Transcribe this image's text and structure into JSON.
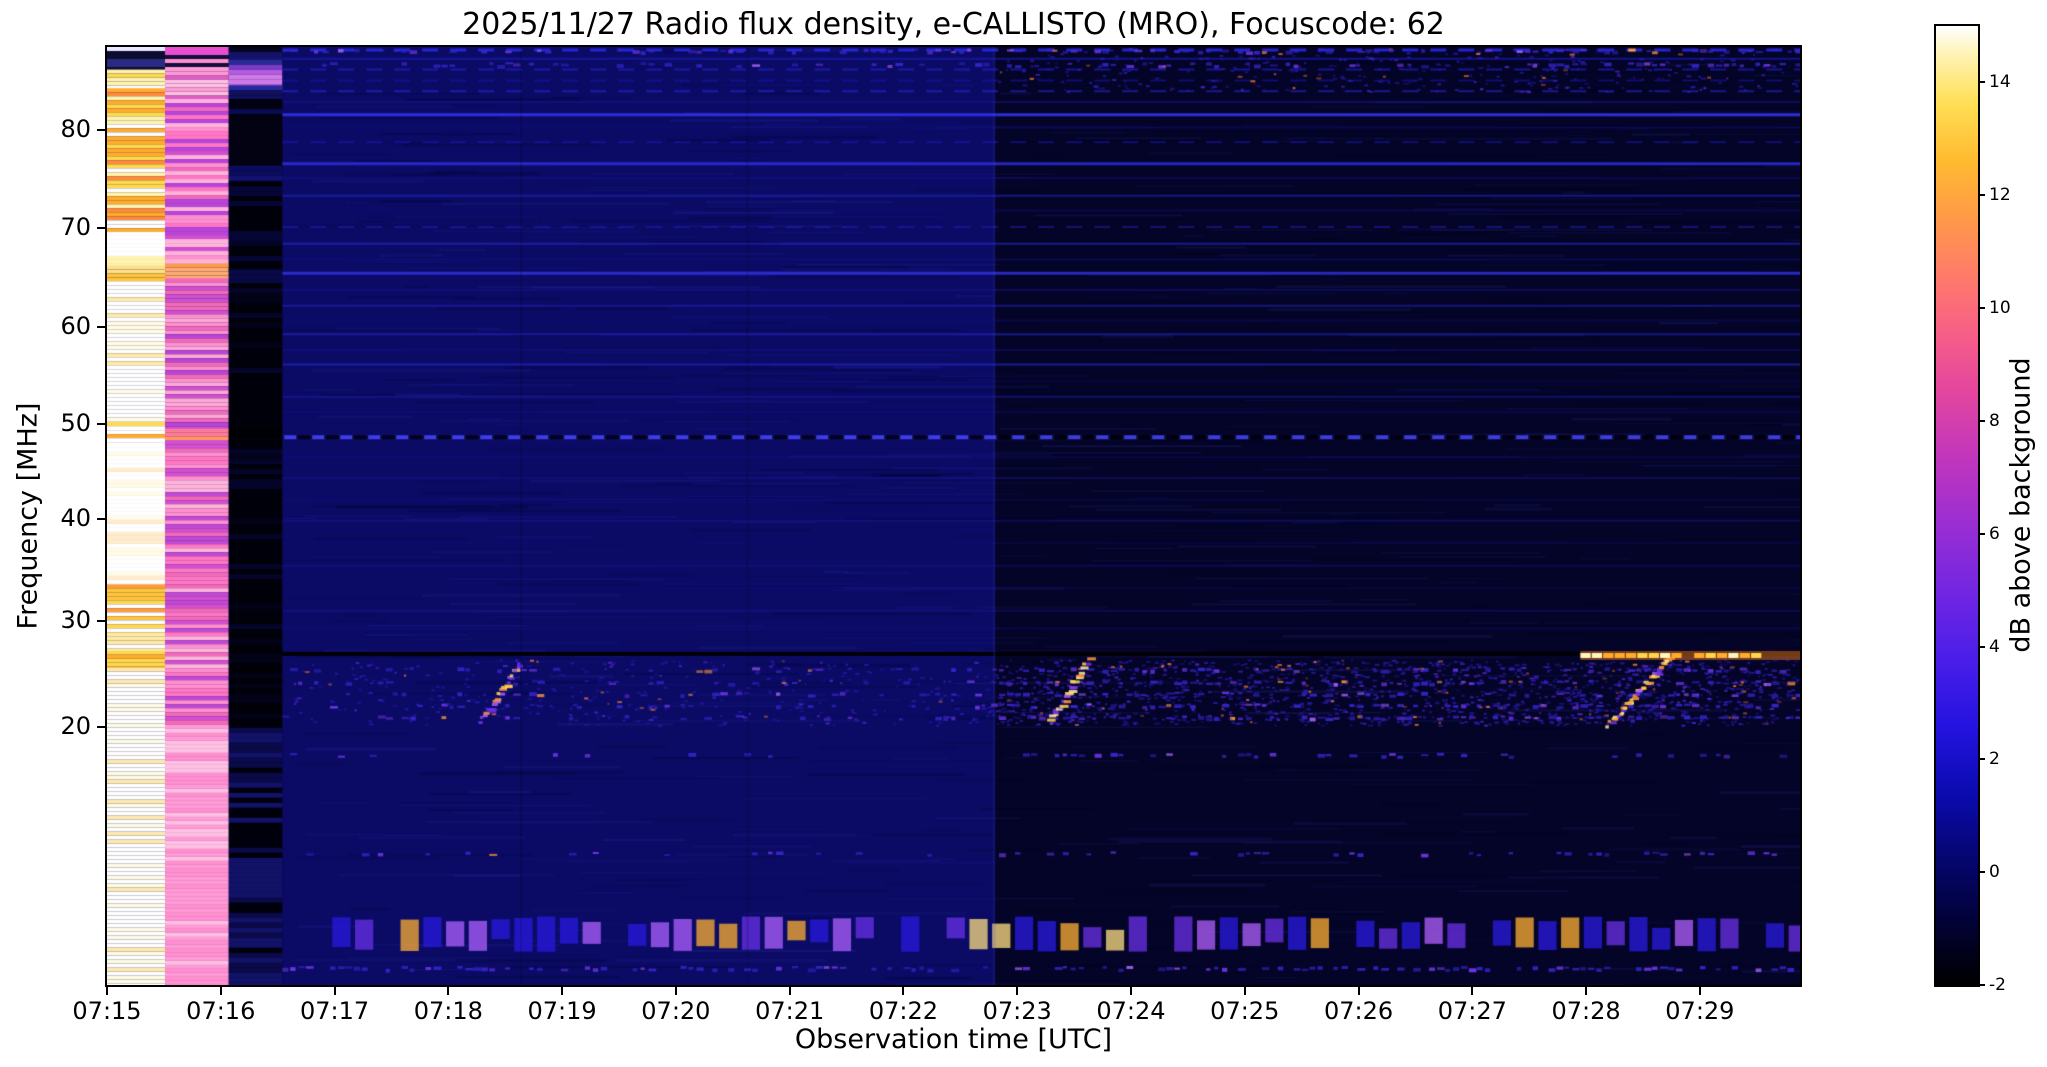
{
  "chart_data": {
    "type": "heatmap",
    "subtype": "radio-spectrogram",
    "title": "2025/11/27  Radio flux density, e-CALLISTO (MRO), Focuscode: 62",
    "xlabel": "Observation time [UTC]",
    "ylabel": "Frequency [MHz]",
    "x_ticks": [
      "07:15",
      "07:16",
      "07:17",
      "07:18",
      "07:19",
      "07:20",
      "07:21",
      "07:22",
      "07:23",
      "07:24",
      "07:25",
      "07:26",
      "07:27",
      "07:28",
      "07:29"
    ],
    "x_start_min": 0,
    "x_end_min": 14.88,
    "time_unit": "minutes after 07:15 UTC",
    "y_ticks": [
      80,
      70,
      60,
      50,
      40,
      30,
      20
    ],
    "y_range_mhz": [
      16.4,
      88.5
    ],
    "grid": false,
    "freq_anchors": [
      [
        88.5,
        0
      ],
      [
        80,
        0.089
      ],
      [
        70,
        0.193
      ],
      [
        60,
        0.298
      ],
      [
        50,
        0.402
      ],
      [
        40,
        0.503
      ],
      [
        30,
        0.612
      ],
      [
        20,
        0.725
      ],
      [
        19,
        0.8
      ],
      [
        18.3,
        0.87
      ],
      [
        17.5,
        0.935
      ],
      [
        16.4,
        1
      ]
    ],
    "colorbar": {
      "label": "dB above background",
      "ticks": [
        -2,
        0,
        2,
        4,
        6,
        8,
        10,
        12,
        14
      ],
      "vmin": -2,
      "vmax": 15,
      "colormap": "gnuplot2-like",
      "stops": [
        [
          0,
          "#000000"
        ],
        [
          0.07,
          "#02023a"
        ],
        [
          0.13,
          "#05056e"
        ],
        [
          0.2,
          "#0b0bb0"
        ],
        [
          0.27,
          "#2413e0"
        ],
        [
          0.34,
          "#4a1ee8"
        ],
        [
          0.41,
          "#7226e2"
        ],
        [
          0.48,
          "#9a2ed2"
        ],
        [
          0.55,
          "#c136bc"
        ],
        [
          0.62,
          "#e4469e"
        ],
        [
          0.68,
          "#f75f86"
        ],
        [
          0.74,
          "#ff7b6a"
        ],
        [
          0.8,
          "#ff9a48"
        ],
        [
          0.86,
          "#ffbb30"
        ],
        [
          0.92,
          "#ffdf56"
        ],
        [
          0.97,
          "#fff3b4"
        ],
        [
          1,
          "#ffffff"
        ]
      ]
    },
    "spectrogram": {
      "seed": 1337,
      "main_t0": 1.54,
      "transition_t": 7.8,
      "regions": [
        {
          "t0": 1.54,
          "t1": 7.8,
          "color": "#0b0b66"
        },
        {
          "t0": 7.8,
          "t1": 14.88,
          "color": "#040428"
        }
      ],
      "texture": {
        "streaks": 750
      },
      "columns": [
        {
          "t0": 0,
          "t1": 0.51,
          "stripe": 4,
          "zones": [
            {
              "f0": 88.6,
              "f1": 86.2,
              "pal": [
                "#0c0c30",
                "#2a2a85",
                "#e8e8ff"
              ],
              "bias": 0.55
            },
            {
              "f0": 86.2,
              "f1": 84.3,
              "pal": [
                "#ffffff",
                "#ffd84d",
                "#fff3b0"
              ]
            },
            {
              "f0": 84.3,
              "f1": 69.6,
              "pal": [
                "#ffd84d",
                "#ffffff",
                "#ffab2e",
                "#fff3b0",
                "#ff8a3c"
              ]
            },
            {
              "f0": 69.6,
              "f1": 66.2,
              "pal": [
                "#ffffff",
                "#fff3b0"
              ]
            },
            {
              "f0": 66.2,
              "f1": 64.6,
              "pal": [
                "#ffc43c",
                "#ff9a3c",
                "#ffe08a"
              ]
            },
            {
              "f0": 64.6,
              "f1": 50.2,
              "pal": [
                "#ffffff",
                "#fffbe6",
                "#ffeaa6"
              ],
              "bias": 0.5
            },
            {
              "f0": 50.2,
              "f1": 47.9,
              "pal": [
                "#ffd84d",
                "#ffab2e",
                "#ffffff"
              ]
            },
            {
              "f0": 47.9,
              "f1": 33.6,
              "pal": [
                "#ffffff",
                "#fffbe6",
                "#ffeccc"
              ],
              "bias": 0.55
            },
            {
              "f0": 33.6,
              "f1": 28.9,
              "pal": [
                "#ffd84d",
                "#ffc43c",
                "#ffffff",
                "#ff9a3c"
              ]
            },
            {
              "f0": 28.9,
              "f1": 27.2,
              "pal": [
                "#ffffff",
                "#ffeaa6"
              ]
            },
            {
              "f0": 27.2,
              "f1": 25.6,
              "pal": [
                "#ffab2e",
                "#ffd84d"
              ]
            },
            {
              "f0": 25.6,
              "f1": 16.4,
              "pal": [
                "#ffffff",
                "#fffbe6",
                "#ffe9b0"
              ],
              "bias": 0.5
            }
          ]
        },
        {
          "t0": 0.51,
          "t1": 1.07,
          "stripe": 4,
          "zones": [
            {
              "f0": 88.6,
              "f1": 86.4,
              "pal": [
                "#10103a",
                "#e84fd0",
                "#ff8fd0"
              ],
              "bias": 0.4
            },
            {
              "f0": 86.4,
              "f1": 83.2,
              "pal": [
                "#ff9ad6",
                "#ffc0e4",
                "#e05cc8"
              ]
            },
            {
              "f0": 83.2,
              "f1": 66.4,
              "pal": [
                "#f06abc",
                "#ff8fd0",
                "#d24fd0",
                "#b844d8",
                "#ffb4dc",
                "#ff77c4"
              ]
            },
            {
              "f0": 66.4,
              "f1": 64.9,
              "pal": [
                "#ffab74",
                "#ff8fb0",
                "#ff9a4a"
              ]
            },
            {
              "f0": 64.9,
              "f1": 49.5,
              "pal": [
                "#f06abc",
                "#ff8fd0",
                "#cf4fd0",
                "#ffa8d8",
                "#b844d8"
              ]
            },
            {
              "f0": 49.5,
              "f1": 48.3,
              "pal": [
                "#ff9a5a",
                "#ff7a9a"
              ]
            },
            {
              "f0": 48.3,
              "f1": 20.2,
              "pal": [
                "#f06abc",
                "#ff8fd0",
                "#d24fd0",
                "#ffb4dc",
                "#c04ad4",
                "#ff77c4"
              ]
            },
            {
              "f0": 20.2,
              "f1": 16.4,
              "pal": [
                "#ff9ad6",
                "#ffc0e4",
                "#ff8fd0"
              ]
            }
          ]
        },
        {
          "t0": 1.07,
          "t1": 1.54,
          "stripe": 5,
          "zones": [
            {
              "f0": 88.6,
              "f1": 87.2,
              "pal": [
                "#05051e",
                "#13136a"
              ]
            },
            {
              "f0": 87.2,
              "f1": 84.6,
              "pal": [
                "#b45ce0",
                "#7a3cc8",
                "#2a2a96",
                "#d07ae8"
              ]
            },
            {
              "f0": 84.6,
              "f1": 83.2,
              "pal": [
                "#2828a0",
                "#10105c"
              ]
            },
            {
              "f0": 83.2,
              "f1": 76.4,
              "pal": [
                "#020212",
                "#07073a",
                "#0b0b52"
              ],
              "bias": 0.5
            },
            {
              "f0": 76.4,
              "f1": 74.8,
              "pal": [
                "#0c0c5e",
                "#121270"
              ]
            },
            {
              "f0": 74.8,
              "f1": 65.8,
              "pal": [
                "#010109",
                "#040424",
                "#060636"
              ],
              "bias": 0.5
            },
            {
              "f0": 65.8,
              "f1": 64.4,
              "pal": [
                "#0d0d60",
                "#090946"
              ]
            },
            {
              "f0": 64.4,
              "f1": 49.6,
              "pal": [
                "#010109",
                "#030318",
                "#050528"
              ],
              "bias": 0.55
            },
            {
              "f0": 49.6,
              "f1": 48.4,
              "pal": [
                "#000004",
                "#020212"
              ]
            },
            {
              "f0": 48.4,
              "f1": 27.4,
              "pal": [
                "#010109",
                "#05052a",
                "#030318"
              ],
              "bias": 0.5
            },
            {
              "f0": 27.4,
              "f1": 20.4,
              "pal": [
                "#000006",
                "#030316"
              ]
            },
            {
              "f0": 20.4,
              "f1": 16.4,
              "pal": [
                "#00000c",
                "#0a0a48",
                "#121268"
              ]
            }
          ]
        }
      ],
      "lines": [
        {
          "f": 88.2,
          "c": "#2a2ae8",
          "w": 3,
          "a": 0.85,
          "d": 1
        },
        {
          "f": 87.3,
          "c": "#1b1bb0",
          "w": 2,
          "a": 0.7
        },
        {
          "f": 86.2,
          "c": "#2222cc",
          "w": 2,
          "a": 0.65,
          "d": 1
        },
        {
          "f": 85.1,
          "c": "#1a1aa8",
          "w": 2,
          "a": 0.55,
          "d": 1
        },
        {
          "f": 84.0,
          "c": "#2a2ad0",
          "w": 2,
          "a": 0.6,
          "d": 1
        },
        {
          "f": 82.9,
          "c": "#15158c",
          "w": 2,
          "a": 0.5
        },
        {
          "f": 81.6,
          "c": "#3535f0",
          "w": 3,
          "a": 0.85
        },
        {
          "f": 80.3,
          "c": "#101080",
          "w": 2,
          "a": 0.45
        },
        {
          "f": 78.8,
          "c": "#1c1cb0",
          "w": 2,
          "a": 0.55,
          "d": 1
        },
        {
          "f": 76.6,
          "c": "#3030e0",
          "w": 3,
          "a": 0.8
        },
        {
          "f": 75.1,
          "c": "#15158c",
          "w": 2,
          "a": 0.45
        },
        {
          "f": 73.3,
          "c": "#2525c0",
          "w": 2,
          "a": 0.6
        },
        {
          "f": 71.8,
          "c": "#101078",
          "w": 2,
          "a": 0.4
        },
        {
          "f": 70.1,
          "c": "#2020b0",
          "w": 2,
          "a": 0.55,
          "d": 1
        },
        {
          "f": 68.4,
          "c": "#2828cc",
          "w": 2,
          "a": 0.6
        },
        {
          "f": 66.8,
          "c": "#121288",
          "w": 2,
          "a": 0.45
        },
        {
          "f": 65.4,
          "c": "#3232e4",
          "w": 3,
          "a": 0.8
        },
        {
          "f": 63.7,
          "c": "#15158c",
          "w": 2,
          "a": 0.45
        },
        {
          "f": 62.1,
          "c": "#2424bc",
          "w": 2,
          "a": 0.55
        },
        {
          "f": 60.6,
          "c": "#101078",
          "w": 2,
          "a": 0.4
        },
        {
          "f": 59.2,
          "c": "#2828cc",
          "w": 2,
          "a": 0.55
        },
        {
          "f": 57.6,
          "c": "#121284",
          "w": 2,
          "a": 0.45
        },
        {
          "f": 56.1,
          "c": "#2a2ad0",
          "w": 2,
          "a": 0.6
        },
        {
          "f": 54.4,
          "c": "#0e0e70",
          "w": 2,
          "a": 0.35
        },
        {
          "f": 52.8,
          "c": "#1e1ea8",
          "w": 2,
          "a": 0.5
        },
        {
          "f": 51.2,
          "c": "#121280",
          "w": 2,
          "a": 0.4
        },
        {
          "f": 48.6,
          "c": "#4848ff",
          "w": 4,
          "a": 0.85,
          "d": 1
        },
        {
          "f": 48.6,
          "c": "#00000a",
          "w": 4,
          "a": 0.8,
          "d": 2
        },
        {
          "f": 46.5,
          "c": "#15158c",
          "w": 2,
          "a": 0.35
        },
        {
          "f": 44.3,
          "c": "#1a1a98",
          "w": 2,
          "a": 0.4
        },
        {
          "f": 42.0,
          "c": "#121280",
          "w": 2,
          "a": 0.35
        },
        {
          "f": 39.8,
          "c": "#1c1ca0",
          "w": 2,
          "a": 0.4
        },
        {
          "f": 37.6,
          "c": "#121280",
          "w": 2,
          "a": 0.3
        },
        {
          "f": 35.4,
          "c": "#1a1a98",
          "w": 2,
          "a": 0.35
        },
        {
          "f": 33.2,
          "c": "#121280",
          "w": 2,
          "a": 0.3
        },
        {
          "f": 31.0,
          "c": "#1c1ca0",
          "w": 2,
          "a": 0.35
        },
        {
          "f": 29.3,
          "c": "#15158c",
          "w": 2,
          "a": 0.3
        }
      ],
      "black_line_f": 26.9,
      "dotted_rows": [
        {
          "f": 88.1,
          "dl": 0.5,
          "dr": 0.55
        },
        {
          "f": 86.7,
          "dl": 0.35,
          "dr": 0.45
        },
        {
          "f": 25.4
        },
        {
          "f": 24.2
        },
        {
          "f": 23.1
        },
        {
          "f": 22.0
        },
        {
          "f": 20.9
        },
        {
          "f": 19.6,
          "dl": 0.15,
          "dr": 0.3
        },
        {
          "f": 18.4,
          "dl": 0.2,
          "dr": 0.35
        },
        {
          "f": 16.7,
          "dl": 0.5,
          "dr": 0.6
        }
      ],
      "speckles": [
        {
          "n": 1500,
          "t0": 7.8,
          "t1": 14.85,
          "f0": 20.2,
          "f1": 26.4
        },
        {
          "n": 350,
          "t0": 1.6,
          "t1": 7.8,
          "f0": 20.2,
          "f1": 26.4
        },
        {
          "n": 300,
          "t0": 7.8,
          "t1": 14.85,
          "f0": 84,
          "f1": 88.4
        }
      ],
      "blob_band": {
        "f0": 17.0,
        "f1": 17.6,
        "step": 0.2,
        "skip": 0.15
      },
      "bursts": [
        {
          "t0": 3.28,
          "t1": 3.62,
          "f0": 20.6,
          "f1": 26.2,
          "n": 26,
          "pal": [
            "#6a30e8",
            "#b060ff",
            "#ff9a3c",
            "#8040e0",
            "#ffd84d"
          ]
        },
        {
          "t0": 8.27,
          "t1": 8.6,
          "f0": 20.6,
          "f1": 26.4,
          "n": 28,
          "pal": [
            "#b060ff",
            "#ff9a3c",
            "#ffd84d",
            "#7a35e8",
            "#fff0a0"
          ]
        },
        {
          "t0": 13.18,
          "t1": 13.72,
          "f0": 20.3,
          "f1": 26.6,
          "n": 40,
          "pal": [
            "#ff9a3c",
            "#ffd84d",
            "#b060ff",
            "#fff0a0",
            "#7a35e8"
          ]
        }
      ],
      "bright_line": {
        "t0": 12.95,
        "f": 26.8
      },
      "vlines": [
        {
          "t": 3.63,
          "a": 0.15
        },
        {
          "t": 5.62,
          "a": 0.15
        },
        {
          "t": 7.79,
          "a": 0.22,
          "c": "#4848e8"
        }
      ]
    }
  }
}
